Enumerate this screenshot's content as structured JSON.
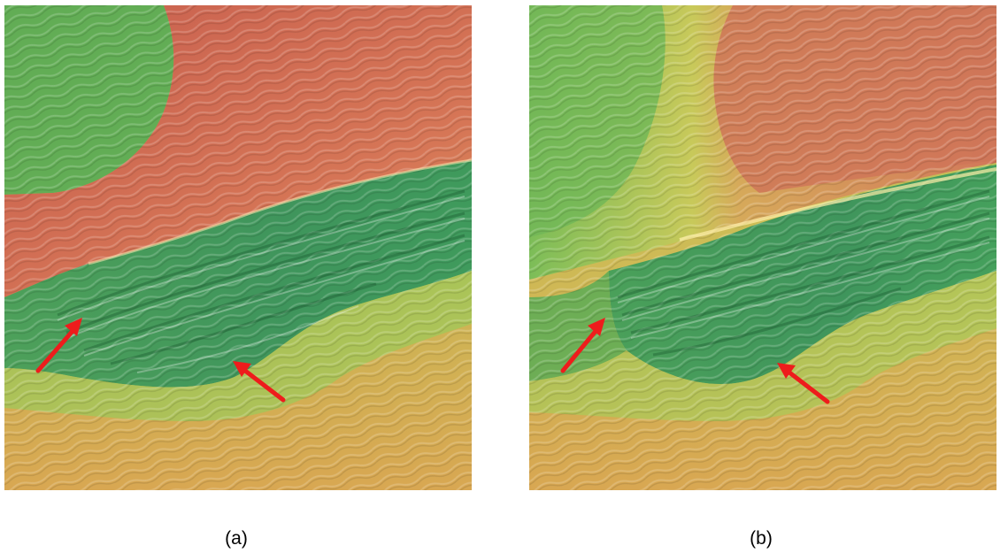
{
  "panels": [
    {
      "id": "a",
      "caption": "(a)",
      "description_colors": {
        "high": "#cf6a55",
        "mid": "#93bf55",
        "low": "#3f9a5a",
        "edge": "#d6a44f"
      }
    },
    {
      "id": "b",
      "caption": "(b)",
      "description_colors": {
        "high": "#cf7a5a",
        "mid": "#b6cf59",
        "low": "#3f9a5a",
        "edge": "#d6a44f"
      }
    }
  ],
  "annotation": {
    "arrow_color": "#ee1c1c",
    "arrow_count_per_panel": 2
  }
}
